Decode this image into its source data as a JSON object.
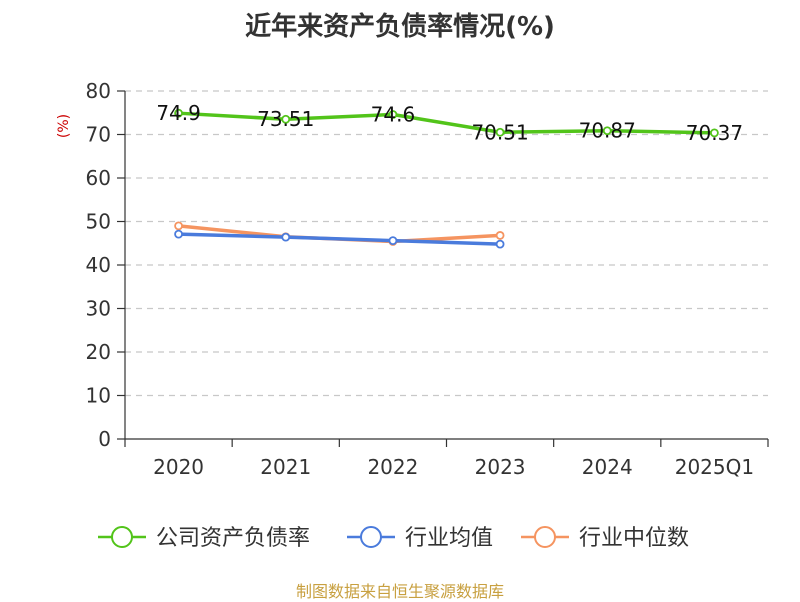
{
  "title": "近年来资产负债率情况(%)",
  "footer": "制图数据来自恒生聚源数据库",
  "chart_data": {
    "type": "line",
    "title": "近年来资产负债率情况(%)",
    "ylabel": "(%)",
    "xlabel": "",
    "categories": [
      "2020",
      "2021",
      "2022",
      "2023",
      "2024",
      "2025Q1"
    ],
    "ylim": [
      0,
      80
    ],
    "yticks": [
      0,
      10,
      20,
      30,
      40,
      50,
      60,
      70,
      80
    ],
    "grid": true,
    "legend_position": "bottom",
    "series": [
      {
        "name": "公司资产负债率",
        "color": "#52c41a",
        "values": [
          74.9,
          73.51,
          74.6,
          70.51,
          70.87,
          70.37
        ],
        "labels": [
          "74.9",
          "73.51",
          "74.6",
          "70.51",
          "70.87",
          "70.37"
        ]
      },
      {
        "name": "行业均值",
        "color": "#4a7bdc",
        "values": [
          47.1,
          46.4,
          45.6,
          44.8,
          null,
          null
        ]
      },
      {
        "name": "行业中位数",
        "color": "#f59460",
        "values": [
          49.0,
          46.5,
          45.4,
          46.8,
          null,
          null
        ]
      }
    ]
  }
}
